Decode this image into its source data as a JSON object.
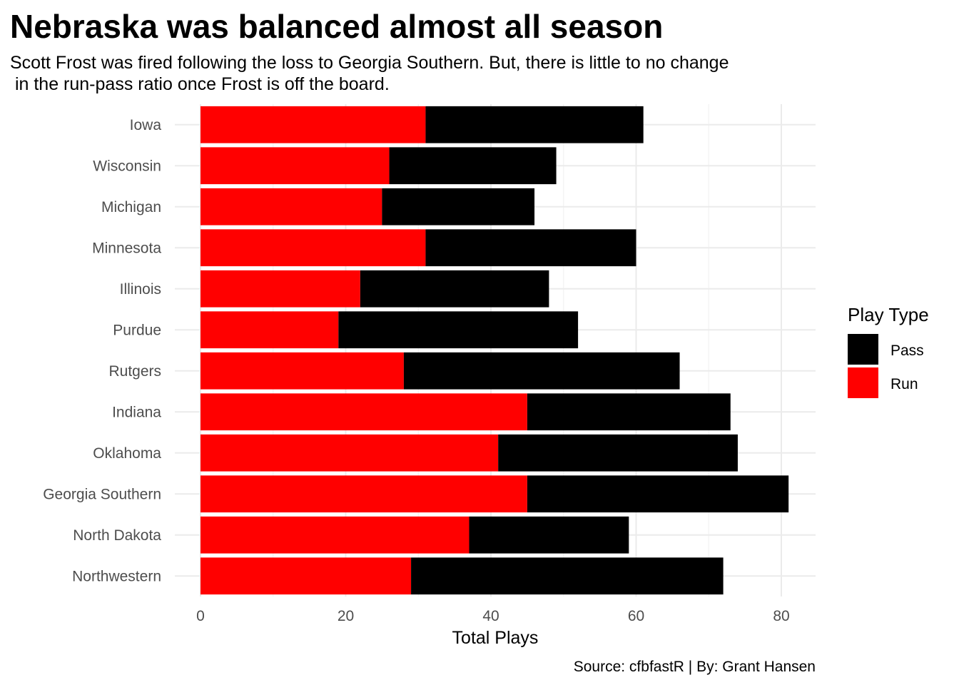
{
  "chart_data": {
    "type": "bar",
    "orientation": "horizontal",
    "stacked": true,
    "title": "Nebraska was balanced almost all season",
    "subtitle_lines": [
      "Scott Frost was fired following the loss to Georgia Southern. But, there is little to no change",
      " in the run-pass ratio once Frost is off the board."
    ],
    "xlabel": "Total Plays",
    "ylabel": "",
    "caption": "Source: cfbfastR | By: Grant Hansen",
    "xlim": [
      0,
      85
    ],
    "xticks": [
      0,
      20,
      40,
      60,
      80
    ],
    "grid": true,
    "legend": {
      "title": "Play Type",
      "placement": "right",
      "entries": [
        {
          "label": "Pass",
          "color": "#000000"
        },
        {
          "label": "Run",
          "color": "#ff0000"
        }
      ]
    },
    "categories": [
      "Iowa",
      "Wisconsin",
      "Michigan",
      "Minnesota",
      "Illinois",
      "Purdue",
      "Rutgers",
      "Indiana",
      "Oklahoma",
      "Georgia Southern",
      "North Dakota",
      "Northwestern"
    ],
    "series": [
      {
        "name": "Run",
        "color": "#ff0000",
        "values": [
          31,
          26,
          25,
          31,
          22,
          19,
          28,
          45,
          41,
          45,
          37,
          29
        ]
      },
      {
        "name": "Pass",
        "color": "#000000",
        "values": [
          30,
          23,
          21,
          29,
          26,
          33,
          38,
          28,
          33,
          36,
          22,
          43
        ]
      }
    ]
  }
}
